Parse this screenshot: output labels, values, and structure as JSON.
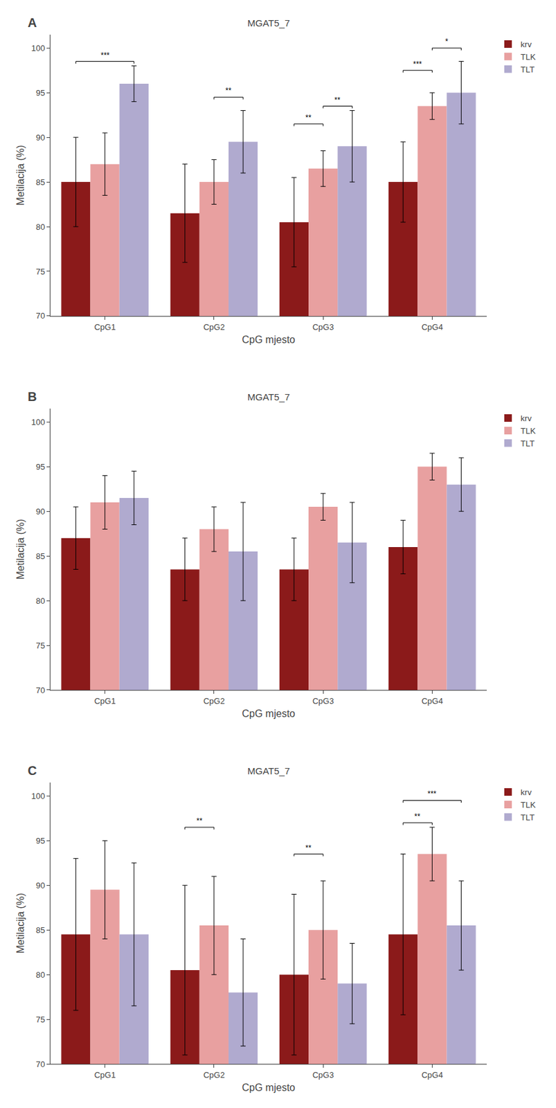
{
  "chart_data": [
    {
      "type": "bar",
      "title": "MGAT5_7",
      "panel_label": "A",
      "xlabel": "CpG mjesto",
      "ylabel": "Metilacija (%)",
      "categories": [
        "CpG1",
        "CpG2",
        "CpG3",
        "CpG4"
      ],
      "series": [
        {
          "name": "krv",
          "color": "#8B1A1A",
          "values": [
            85.0,
            81.5,
            80.5,
            85.0
          ],
          "errors": [
            5.0,
            5.5,
            5.0,
            4.5
          ]
        },
        {
          "name": "TLK",
          "color": "#E8A0A0",
          "values": [
            87.0,
            85.0,
            86.5,
            93.5
          ],
          "errors": [
            3.5,
            2.5,
            2.0,
            1.5
          ]
        },
        {
          "name": "TLT",
          "color": "#B0AACF",
          "values": [
            96.0,
            89.5,
            89.0,
            95.0
          ],
          "errors": [
            2.0,
            3.5,
            4.0,
            3.5
          ]
        }
      ],
      "annotations": [
        {
          "text": "***",
          "category": "CpG1",
          "from": "krv",
          "to": "TLT",
          "y": 98.5
        },
        {
          "text": "**",
          "category": "CpG2",
          "from": "TLK",
          "to": "TLT",
          "y": 94.5
        },
        {
          "text": "**",
          "category": "CpG3",
          "from": "krv",
          "to": "TLK",
          "y": 91.5
        },
        {
          "text": "**",
          "category": "CpG3",
          "from": "TLK",
          "to": "TLT",
          "y": 93.5
        },
        {
          "text": "***",
          "category": "CpG4",
          "from": "krv",
          "to": "TLK",
          "y": 97.5
        },
        {
          "text": "*",
          "category": "CpG4",
          "from": "TLK",
          "to": "TLT",
          "y": 100.0
        }
      ],
      "ylim": [
        70,
        101.5
      ],
      "yticks": [
        70,
        75,
        80,
        85,
        90,
        95,
        100
      ],
      "grid": false,
      "legend": "right"
    },
    {
      "type": "bar",
      "title": "MGAT5_7",
      "panel_label": "B",
      "xlabel": "CpG mjesto",
      "ylabel": "Metilacija (%)",
      "categories": [
        "CpG1",
        "CpG2",
        "CpG3",
        "CpG4"
      ],
      "series": [
        {
          "name": "krv",
          "color": "#8B1A1A",
          "values": [
            87.0,
            83.5,
            83.5,
            86.0
          ],
          "errors": [
            3.5,
            3.5,
            3.5,
            3.0
          ]
        },
        {
          "name": "TLK",
          "color": "#E8A0A0",
          "values": [
            91.0,
            88.0,
            90.5,
            95.0
          ],
          "errors": [
            3.0,
            2.5,
            1.5,
            1.5
          ]
        },
        {
          "name": "TLT",
          "color": "#B0AACF",
          "values": [
            91.5,
            85.5,
            86.5,
            93.0
          ],
          "errors": [
            3.0,
            5.5,
            4.5,
            3.0
          ]
        }
      ],
      "annotations": [],
      "ylim": [
        70,
        101.5
      ],
      "yticks": [
        70,
        75,
        80,
        85,
        90,
        95,
        100
      ],
      "grid": false,
      "legend": "right"
    },
    {
      "type": "bar",
      "title": "MGAT5_7",
      "panel_label": "C",
      "xlabel": "CpG mjesto",
      "ylabel": "Metilacija (%)",
      "categories": [
        "CpG1",
        "CpG2",
        "CpG3",
        "CpG4"
      ],
      "series": [
        {
          "name": "krv",
          "color": "#8B1A1A",
          "values": [
            84.5,
            80.5,
            80.0,
            84.5
          ],
          "errors": [
            8.5,
            9.5,
            9.0,
            9.0
          ]
        },
        {
          "name": "TLK",
          "color": "#E8A0A0",
          "values": [
            89.5,
            85.5,
            85.0,
            93.5
          ],
          "errors": [
            5.5,
            5.5,
            5.5,
            3.0
          ]
        },
        {
          "name": "TLT",
          "color": "#B0AACF",
          "values": [
            84.5,
            78.0,
            79.0,
            85.5
          ],
          "errors": [
            8.0,
            6.0,
            4.5,
            5.0
          ]
        }
      ],
      "annotations": [
        {
          "text": "**",
          "category": "CpG2",
          "from": "krv",
          "to": "TLK",
          "y": 96.5
        },
        {
          "text": "**",
          "category": "CpG3",
          "from": "krv",
          "to": "TLK",
          "y": 93.5
        },
        {
          "text": "**",
          "category": "CpG4",
          "from": "krv",
          "to": "TLK",
          "y": 97.0
        },
        {
          "text": "***",
          "category": "CpG4",
          "from": "krv",
          "to": "TLT",
          "y": 99.5
        }
      ],
      "ylim": [
        70,
        101.5
      ],
      "yticks": [
        70,
        75,
        80,
        85,
        90,
        95,
        100
      ],
      "grid": false,
      "legend": "right"
    }
  ]
}
